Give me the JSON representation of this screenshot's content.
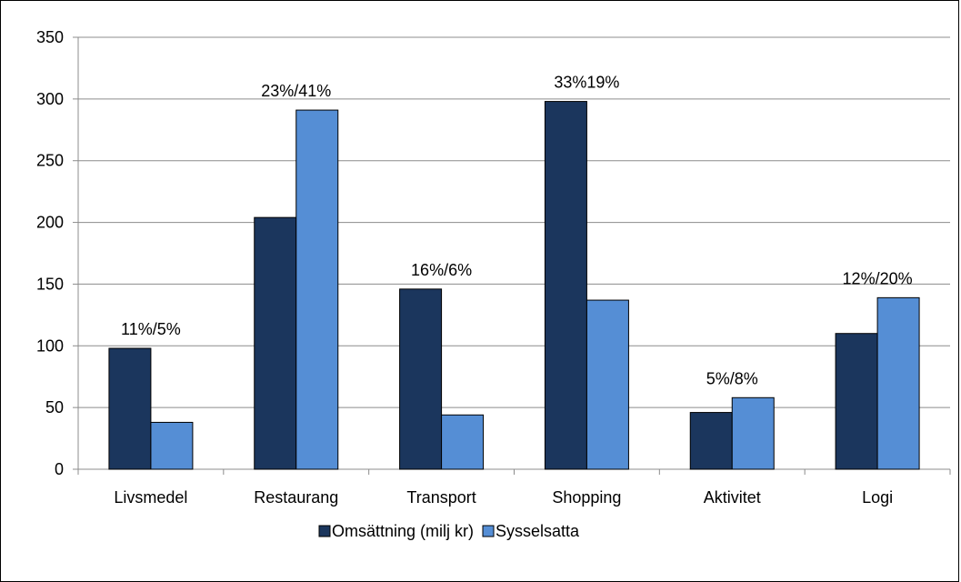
{
  "chart_data": {
    "type": "bar",
    "title": "",
    "xlabel": "",
    "ylabel": "",
    "categories": [
      "Livsmedel",
      "Restaurang",
      "Transport",
      "Shopping",
      "Aktivitet",
      "Logi"
    ],
    "series": [
      {
        "name": "Omsättning (milj kr)",
        "color": "#1b365d",
        "values": [
          98,
          204,
          146,
          298,
          46,
          110
        ]
      },
      {
        "name": "Sysselsatta",
        "color": "#558ed5",
        "values": [
          38,
          291,
          44,
          137,
          58,
          139
        ]
      }
    ],
    "data_labels": [
      "11%/5%",
      "23%/41%",
      "16%/6%",
      "33%19%",
      "5%/8%",
      "12%/20%"
    ],
    "ylim": [
      0,
      350
    ],
    "yticks": [
      0,
      50,
      100,
      150,
      200,
      250,
      300,
      350
    ],
    "grid": true,
    "legend_position": "bottom"
  }
}
